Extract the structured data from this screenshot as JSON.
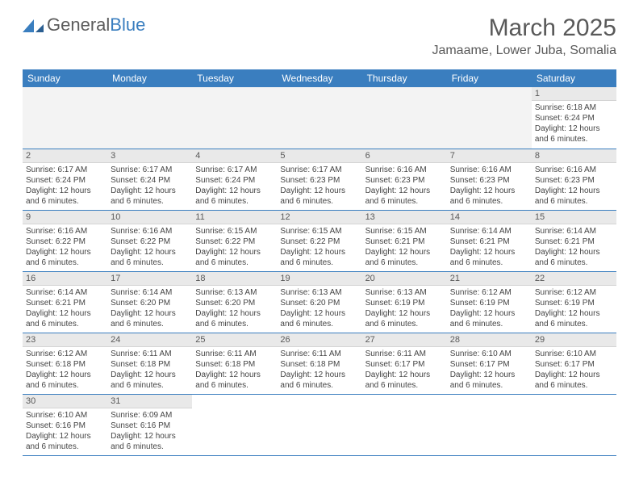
{
  "logo": {
    "text1": "General",
    "text2": "Blue"
  },
  "title": "March 2025",
  "location": "Jamaame, Lower Juba, Somalia",
  "colors": {
    "header_bg": "#3a7ebf",
    "header_text": "#ffffff",
    "daynum_bg": "#e9e9e9",
    "border": "#3a7ebf",
    "text": "#444444",
    "title": "#595959"
  },
  "weekdays": [
    "Sunday",
    "Monday",
    "Tuesday",
    "Wednesday",
    "Thursday",
    "Friday",
    "Saturday"
  ],
  "first_weekday_index": 6,
  "days_in_month": 31,
  "days": {
    "1": {
      "sunrise": "6:18 AM",
      "sunset": "6:24 PM",
      "daylight": "12 hours and 6 minutes."
    },
    "2": {
      "sunrise": "6:17 AM",
      "sunset": "6:24 PM",
      "daylight": "12 hours and 6 minutes."
    },
    "3": {
      "sunrise": "6:17 AM",
      "sunset": "6:24 PM",
      "daylight": "12 hours and 6 minutes."
    },
    "4": {
      "sunrise": "6:17 AM",
      "sunset": "6:24 PM",
      "daylight": "12 hours and 6 minutes."
    },
    "5": {
      "sunrise": "6:17 AM",
      "sunset": "6:23 PM",
      "daylight": "12 hours and 6 minutes."
    },
    "6": {
      "sunrise": "6:16 AM",
      "sunset": "6:23 PM",
      "daylight": "12 hours and 6 minutes."
    },
    "7": {
      "sunrise": "6:16 AM",
      "sunset": "6:23 PM",
      "daylight": "12 hours and 6 minutes."
    },
    "8": {
      "sunrise": "6:16 AM",
      "sunset": "6:23 PM",
      "daylight": "12 hours and 6 minutes."
    },
    "9": {
      "sunrise": "6:16 AM",
      "sunset": "6:22 PM",
      "daylight": "12 hours and 6 minutes."
    },
    "10": {
      "sunrise": "6:16 AM",
      "sunset": "6:22 PM",
      "daylight": "12 hours and 6 minutes."
    },
    "11": {
      "sunrise": "6:15 AM",
      "sunset": "6:22 PM",
      "daylight": "12 hours and 6 minutes."
    },
    "12": {
      "sunrise": "6:15 AM",
      "sunset": "6:22 PM",
      "daylight": "12 hours and 6 minutes."
    },
    "13": {
      "sunrise": "6:15 AM",
      "sunset": "6:21 PM",
      "daylight": "12 hours and 6 minutes."
    },
    "14": {
      "sunrise": "6:14 AM",
      "sunset": "6:21 PM",
      "daylight": "12 hours and 6 minutes."
    },
    "15": {
      "sunrise": "6:14 AM",
      "sunset": "6:21 PM",
      "daylight": "12 hours and 6 minutes."
    },
    "16": {
      "sunrise": "6:14 AM",
      "sunset": "6:21 PM",
      "daylight": "12 hours and 6 minutes."
    },
    "17": {
      "sunrise": "6:14 AM",
      "sunset": "6:20 PM",
      "daylight": "12 hours and 6 minutes."
    },
    "18": {
      "sunrise": "6:13 AM",
      "sunset": "6:20 PM",
      "daylight": "12 hours and 6 minutes."
    },
    "19": {
      "sunrise": "6:13 AM",
      "sunset": "6:20 PM",
      "daylight": "12 hours and 6 minutes."
    },
    "20": {
      "sunrise": "6:13 AM",
      "sunset": "6:19 PM",
      "daylight": "12 hours and 6 minutes."
    },
    "21": {
      "sunrise": "6:12 AM",
      "sunset": "6:19 PM",
      "daylight": "12 hours and 6 minutes."
    },
    "22": {
      "sunrise": "6:12 AM",
      "sunset": "6:19 PM",
      "daylight": "12 hours and 6 minutes."
    },
    "23": {
      "sunrise": "6:12 AM",
      "sunset": "6:18 PM",
      "daylight": "12 hours and 6 minutes."
    },
    "24": {
      "sunrise": "6:11 AM",
      "sunset": "6:18 PM",
      "daylight": "12 hours and 6 minutes."
    },
    "25": {
      "sunrise": "6:11 AM",
      "sunset": "6:18 PM",
      "daylight": "12 hours and 6 minutes."
    },
    "26": {
      "sunrise": "6:11 AM",
      "sunset": "6:18 PM",
      "daylight": "12 hours and 6 minutes."
    },
    "27": {
      "sunrise": "6:11 AM",
      "sunset": "6:17 PM",
      "daylight": "12 hours and 6 minutes."
    },
    "28": {
      "sunrise": "6:10 AM",
      "sunset": "6:17 PM",
      "daylight": "12 hours and 6 minutes."
    },
    "29": {
      "sunrise": "6:10 AM",
      "sunset": "6:17 PM",
      "daylight": "12 hours and 6 minutes."
    },
    "30": {
      "sunrise": "6:10 AM",
      "sunset": "6:16 PM",
      "daylight": "12 hours and 6 minutes."
    },
    "31": {
      "sunrise": "6:09 AM",
      "sunset": "6:16 PM",
      "daylight": "12 hours and 6 minutes."
    }
  },
  "labels": {
    "sunrise": "Sunrise:",
    "sunset": "Sunset:",
    "daylight": "Daylight:"
  }
}
